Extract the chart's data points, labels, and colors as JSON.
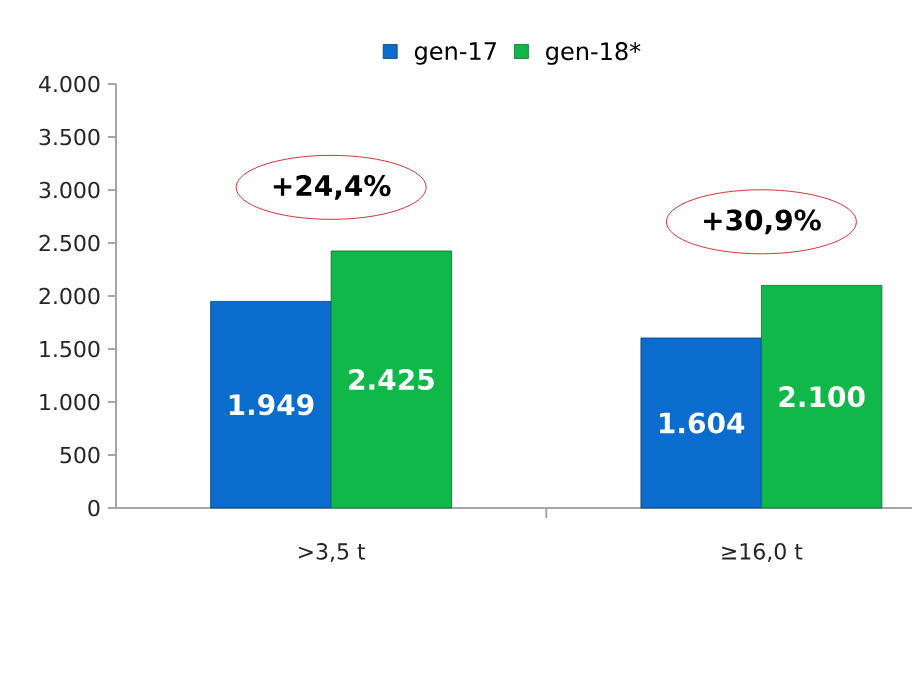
{
  "chart_data": {
    "type": "bar",
    "categories": [
      ">3,5 t",
      "≥16,0 t"
    ],
    "series": [
      {
        "name": "gen-17",
        "color": "#0a6ccc",
        "values": [
          1949,
          1604
        ],
        "value_labels": [
          "1.949",
          "1.604"
        ]
      },
      {
        "name": "gen-18*",
        "color": "#10b84a",
        "values": [
          2425,
          2100
        ],
        "value_labels": [
          "2.425",
          "2.100"
        ]
      }
    ],
    "ylim": [
      0,
      4000
    ],
    "yticks": [
      0,
      500,
      {
        "value": 1000,
        "label": "1.000"
      },
      {
        "value": 1500,
        "label": "1.500"
      },
      {
        "value": 2000,
        "label": "2.000"
      },
      {
        "value": 2500,
        "label": "2.500"
      },
      {
        "value": 3000,
        "label": "3.000"
      },
      {
        "value": 3500,
        "label": "3.500"
      },
      {
        "value": 4000,
        "label": "4.000"
      }
    ],
    "annotations": [
      "+24,4%",
      "+30,9%"
    ],
    "legend": "top",
    "grid": false
  }
}
